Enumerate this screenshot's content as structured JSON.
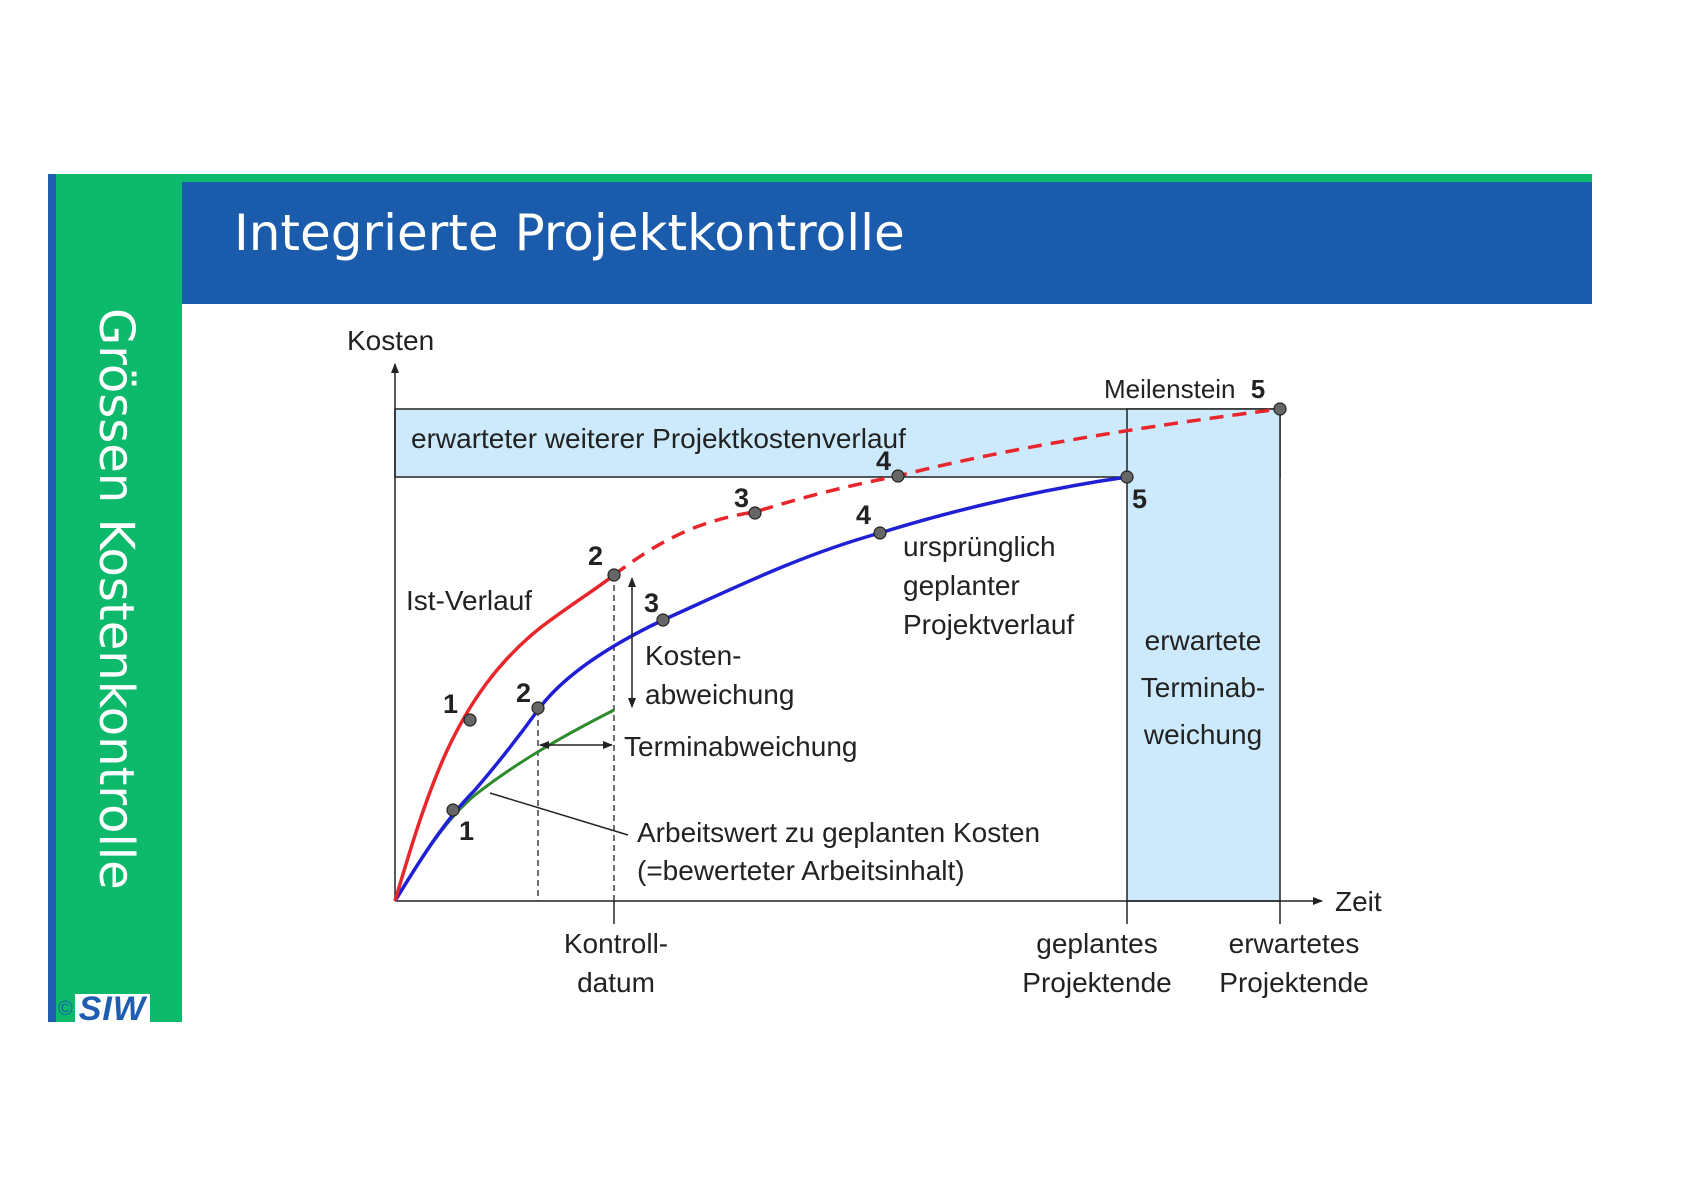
{
  "page": {
    "title": "Integrierte Projektkontrolle",
    "sidebar_title": "Grössen Kostenkontrolle",
    "logo": {
      "copyright": "©",
      "text": "SIW"
    }
  },
  "diagram": {
    "y_axis_label": "Kosten",
    "x_axis_label": "Zeit",
    "band_label": "erwarteter weiterer Projektkostenverlauf",
    "milestone_label": "Meilenstein",
    "milestone_number": "5",
    "ist_label": "Ist-Verlauf",
    "plan_label": [
      "ursprünglich",
      "geplanter",
      "Projektverlauf"
    ],
    "cost_deviation_label": [
      "Kosten-",
      "abweichung"
    ],
    "schedule_deviation_label": "Terminabweichung",
    "earned_value_label": [
      "Arbeitswert zu geplanten Kosten",
      "(=bewerteter Arbeitsinhalt)"
    ],
    "expected_schedule_label": [
      "erwartete",
      "Terminab-",
      "weichung"
    ],
    "x_ticks": {
      "control_date": [
        "Kontroll-",
        "datum"
      ],
      "planned_end": [
        "geplantes",
        "Projektende"
      ],
      "expected_end": [
        "erwartetes",
        "Projektende"
      ]
    },
    "point_labels": {
      "ist": [
        "1",
        "2"
      ],
      "expected": [
        "3",
        "4"
      ],
      "plan": [
        "1",
        "2",
        "3",
        "4",
        "5"
      ]
    },
    "colors": {
      "ist": "#e8262b",
      "plan": "#1f1fd6",
      "earned": "#2e8b2e",
      "band": "#cdeafd",
      "header": "#1b5bab",
      "sidebar": "#0db96a"
    }
  }
}
